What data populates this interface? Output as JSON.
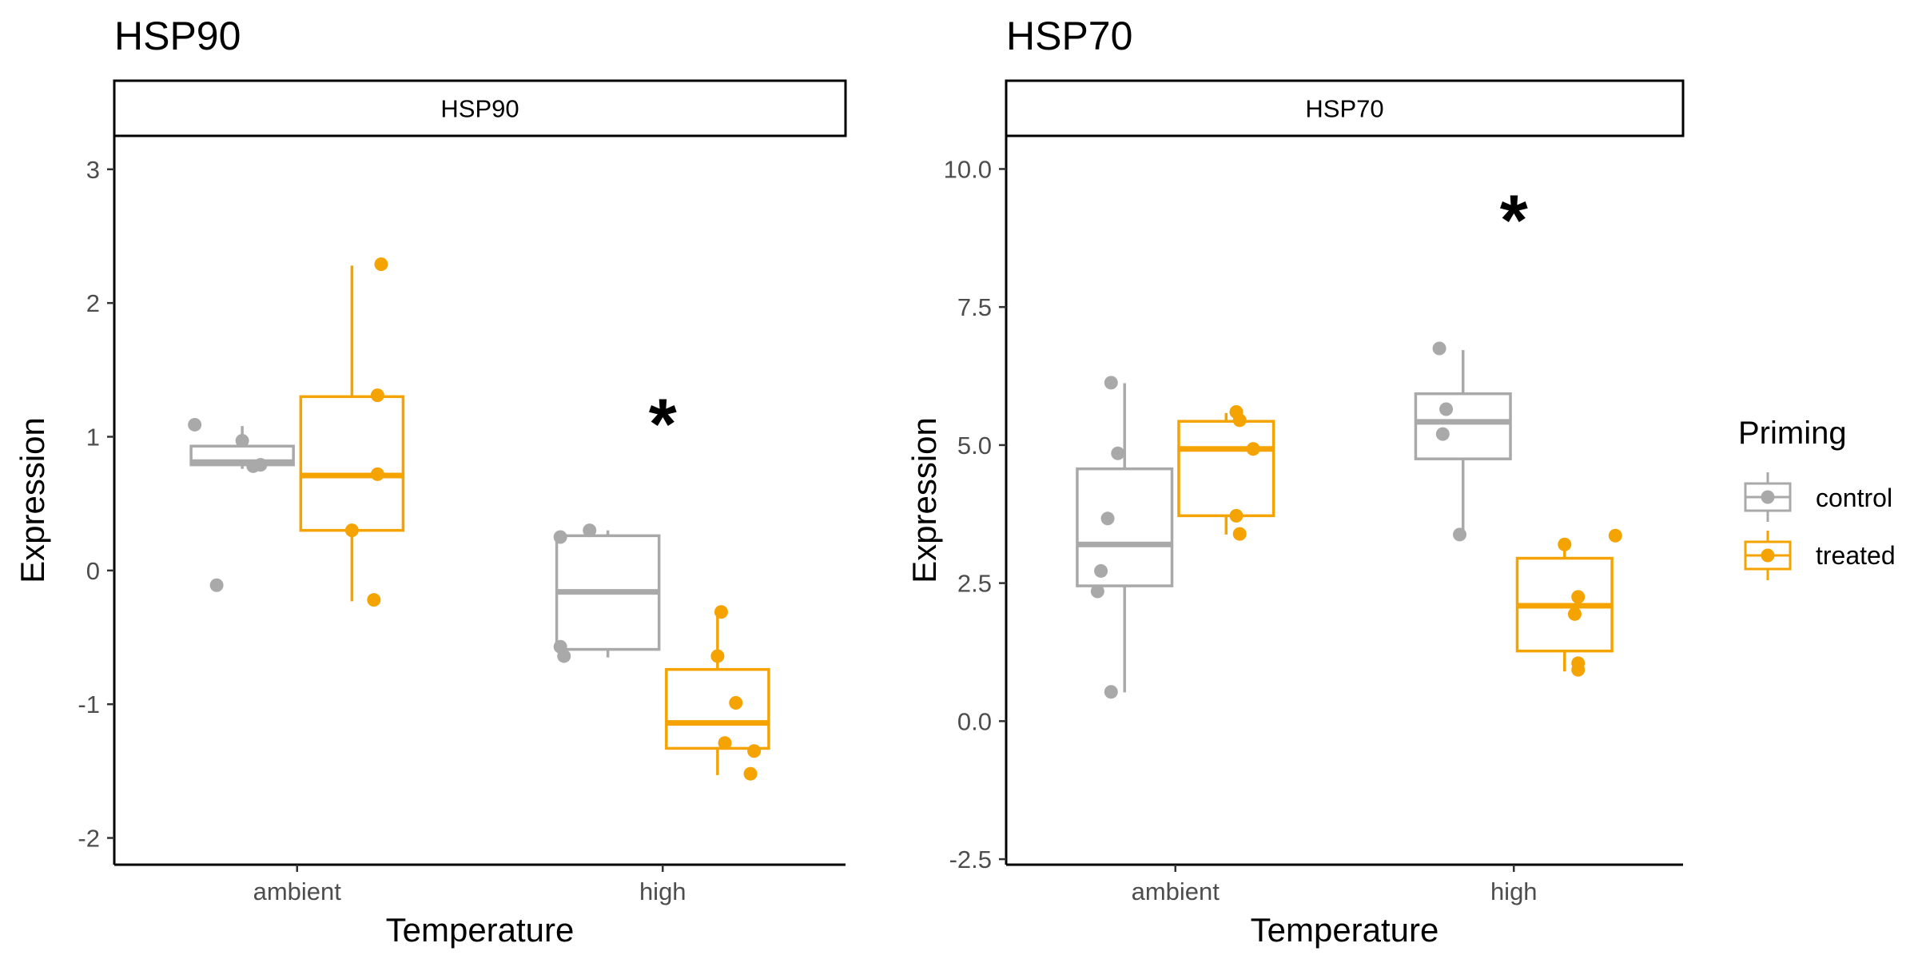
{
  "chart_data": [
    {
      "type": "box",
      "title": "HSP90",
      "strip_label": "HSP90",
      "xlabel": "Temperature",
      "ylabel": "Expression",
      "categories": [
        "ambient",
        "high"
      ],
      "ylim": [
        -2.2,
        3.25
      ],
      "yticks": [
        -2,
        -1,
        0,
        1,
        2,
        3
      ],
      "ytick_labels": [
        "-2",
        "-1",
        "0",
        "1",
        "2",
        "3"
      ],
      "grid": false,
      "significance": [
        {
          "category": "high",
          "label": "*",
          "y": 1.15
        }
      ],
      "series": [
        {
          "name": "control",
          "color": "#a9a9a9",
          "boxes": [
            {
              "category": "ambient",
              "q1": 0.79,
              "median": 0.81,
              "q3": 0.93,
              "whisker_low": 0.76,
              "whisker_high": 1.08,
              "points": [
                {
                  "jitter": -0.28,
                  "y": 1.09
                },
                {
                  "jitter": -0.22,
                  "y": -0.11
                },
                {
                  "jitter": -0.15,
                  "y": 0.97
                },
                {
                  "jitter": -0.12,
                  "y": 0.78
                },
                {
                  "jitter": -0.1,
                  "y": 0.79
                }
              ]
            },
            {
              "category": "high",
              "q1": -0.59,
              "median": -0.16,
              "q3": 0.26,
              "whisker_low": -0.65,
              "whisker_high": 0.3,
              "points": [
                {
                  "jitter": -0.28,
                  "y": 0.25
                },
                {
                  "jitter": -0.2,
                  "y": 0.3
                },
                {
                  "jitter": -0.28,
                  "y": -0.57
                },
                {
                  "jitter": -0.27,
                  "y": -0.64
                }
              ]
            }
          ]
        },
        {
          "name": "treated",
          "color": "#f5a300",
          "boxes": [
            {
              "category": "ambient",
              "q1": 0.3,
              "median": 0.71,
              "q3": 1.3,
              "whisker_low": -0.23,
              "whisker_high": 2.28,
              "points": [
                {
                  "jitter": 0.23,
                  "y": 2.29
                },
                {
                  "jitter": 0.22,
                  "y": 1.31
                },
                {
                  "jitter": 0.22,
                  "y": 0.72
                },
                {
                  "jitter": 0.15,
                  "y": 0.3
                },
                {
                  "jitter": 0.21,
                  "y": -0.22
                }
              ]
            },
            {
              "category": "high",
              "q1": -1.33,
              "median": -1.14,
              "q3": -0.74,
              "whisker_low": -1.53,
              "whisker_high": -0.32,
              "points": [
                {
                  "jitter": 0.16,
                  "y": -0.31
                },
                {
                  "jitter": 0.15,
                  "y": -0.64
                },
                {
                  "jitter": 0.2,
                  "y": -0.99
                },
                {
                  "jitter": 0.17,
                  "y": -1.29
                },
                {
                  "jitter": 0.25,
                  "y": -1.35
                },
                {
                  "jitter": 0.24,
                  "y": -1.52
                }
              ]
            }
          ]
        }
      ]
    },
    {
      "type": "box",
      "title": "HSP70",
      "strip_label": "HSP70",
      "xlabel": "Temperature",
      "ylabel": "Expression",
      "categories": [
        "ambient",
        "high"
      ],
      "ylim": [
        -2.6,
        10.6
      ],
      "yticks": [
        -2.5,
        0,
        2.5,
        5,
        7.5,
        10
      ],
      "ytick_labels": [
        "-2.5",
        "0.0",
        "2.5",
        "5.0",
        "7.5",
        "10.0"
      ],
      "grid": false,
      "significance": [
        {
          "category": "high",
          "label": "*",
          "y": 9.2
        }
      ],
      "series": [
        {
          "name": "control",
          "color": "#a9a9a9",
          "boxes": [
            {
              "category": "ambient",
              "q1": 2.45,
              "median": 3.2,
              "q3": 4.57,
              "whisker_low": 0.52,
              "whisker_high": 6.12,
              "points": [
                {
                  "jitter": -0.19,
                  "y": 6.13
                },
                {
                  "jitter": -0.17,
                  "y": 4.85
                },
                {
                  "jitter": -0.2,
                  "y": 3.67
                },
                {
                  "jitter": -0.22,
                  "y": 2.72
                },
                {
                  "jitter": -0.23,
                  "y": 2.35
                },
                {
                  "jitter": -0.19,
                  "y": 0.53
                }
              ]
            },
            {
              "category": "high",
              "q1": 4.75,
              "median": 5.42,
              "q3": 5.93,
              "whisker_low": 3.38,
              "whisker_high": 6.72,
              "points": [
                {
                  "jitter": -0.22,
                  "y": 6.75
                },
                {
                  "jitter": -0.2,
                  "y": 5.65
                },
                {
                  "jitter": -0.21,
                  "y": 5.2
                },
                {
                  "jitter": -0.16,
                  "y": 3.38
                }
              ]
            }
          ]
        },
        {
          "name": "treated",
          "color": "#f5a300",
          "boxes": [
            {
              "category": "ambient",
              "q1": 3.72,
              "median": 4.93,
              "q3": 5.43,
              "whisker_low": 3.38,
              "whisker_high": 5.58,
              "points": [
                {
                  "jitter": 0.18,
                  "y": 5.6
                },
                {
                  "jitter": 0.19,
                  "y": 5.45
                },
                {
                  "jitter": 0.23,
                  "y": 4.93
                },
                {
                  "jitter": 0.18,
                  "y": 3.72
                },
                {
                  "jitter": 0.19,
                  "y": 3.39
                }
              ]
            },
            {
              "category": "high",
              "q1": 1.27,
              "median": 2.09,
              "q3": 2.95,
              "whisker_low": 0.9,
              "whisker_high": 3.3,
              "points": [
                {
                  "jitter": 0.15,
                  "y": 3.2
                },
                {
                  "jitter": 0.19,
                  "y": 2.25
                },
                {
                  "jitter": 0.18,
                  "y": 1.94
                },
                {
                  "jitter": 0.19,
                  "y": 1.05
                },
                {
                  "jitter": 0.19,
                  "y": 0.93
                },
                {
                  "jitter": 0.3,
                  "y": 3.36
                }
              ]
            }
          ]
        }
      ]
    }
  ],
  "legend": {
    "title": "Priming",
    "position": "right",
    "items": [
      {
        "label": "control",
        "color": "#a9a9a9"
      },
      {
        "label": "treated",
        "color": "#f5a300"
      }
    ]
  }
}
